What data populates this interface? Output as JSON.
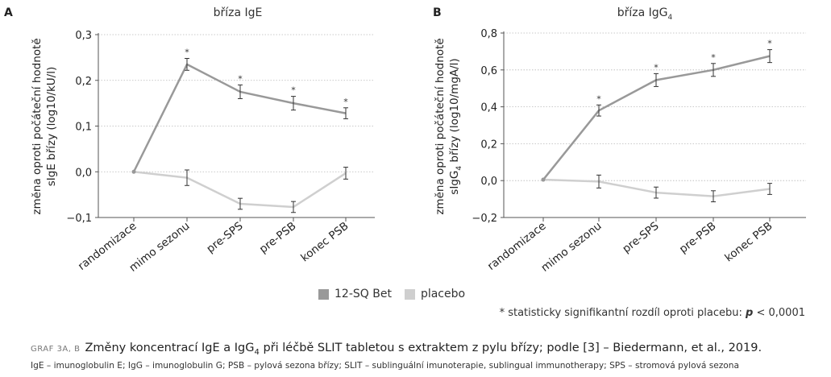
{
  "chart_data": [
    {
      "type": "line",
      "panel": "A",
      "title": "bříza IgE",
      "ylabel": [
        "změna oproti počáteční hodnotě",
        "sIgE břízy (log10/kU/l)"
      ],
      "categories": [
        "randomizace",
        "mimo sezonu",
        "pre-SPS",
        "pre-PSB",
        "konec PSB"
      ],
      "ylim": [
        -0.1,
        0.3
      ],
      "yticks": [
        -0.1,
        0.0,
        0.1,
        0.2,
        0.3
      ],
      "ytick_labels": [
        "−0,1",
        "0,0",
        "0,1",
        "0,2",
        "0,3"
      ],
      "grid": "horizontal dotted",
      "series": [
        {
          "name": "12-SQ Bet",
          "color": "#999999",
          "values": [
            0.0,
            0.235,
            0.175,
            0.15,
            0.128
          ],
          "errors": [
            0,
            0.013,
            0.015,
            0.015,
            0.012
          ],
          "significant": [
            false,
            true,
            true,
            true,
            true
          ]
        },
        {
          "name": "placebo",
          "color": "#cfcfcf",
          "values": [
            0.0,
            -0.013,
            -0.07,
            -0.077,
            -0.003
          ],
          "errors": [
            0,
            0.017,
            0.012,
            0.012,
            0.013
          ],
          "significant": [
            false,
            false,
            false,
            false,
            false
          ]
        }
      ]
    },
    {
      "type": "line",
      "panel": "B",
      "title": "bříza IgG",
      "title_sub": "4",
      "ylabel": [
        "změna oproti počáteční hodnotě",
        "sIgG",
        "4",
        " břízy (log10/mgA/l)"
      ],
      "categories": [
        "randomizace",
        "mimo sezonu",
        "pre-SPS",
        "pre-PSB",
        "konec PSB"
      ],
      "ylim": [
        -0.2,
        0.8
      ],
      "yticks": [
        -0.2,
        0.0,
        0.2,
        0.4,
        0.6,
        0.8
      ],
      "ytick_labels": [
        "−0,2",
        "0,0",
        "0,2",
        "0,4",
        "0,6",
        "0,8"
      ],
      "grid": "horizontal dotted",
      "series": [
        {
          "name": "12-SQ Bet",
          "color": "#999999",
          "values": [
            0.005,
            0.38,
            0.545,
            0.6,
            0.675
          ],
          "errors": [
            0,
            0.03,
            0.035,
            0.035,
            0.035
          ],
          "significant": [
            false,
            true,
            true,
            true,
            true
          ]
        },
        {
          "name": "placebo",
          "color": "#cfcfcf",
          "values": [
            0.005,
            -0.005,
            -0.065,
            -0.085,
            -0.045
          ],
          "errors": [
            0,
            0.035,
            0.03,
            0.03,
            0.03
          ],
          "significant": [
            false,
            false,
            false,
            false,
            false
          ]
        }
      ]
    }
  ],
  "significance_marker": "*",
  "legend": [
    {
      "label": "12-SQ Bet",
      "color": "#999999"
    },
    {
      "label": "placebo",
      "color": "#cfcfcf"
    }
  ],
  "footnote": {
    "prefix": "* statisticky signifikantní rozdíl oproti placebu: ",
    "p": "p",
    "suffix": " < 0,0001"
  },
  "caption": {
    "label": "GRAF 3A, B",
    "text_pre": "Změny koncentrací IgE a IgG",
    "text_sub": "4",
    "text_post": " při léčbě SLIT tabletou s extraktem z pylu břízy; podle [3] – Biedermann, et al., 2019."
  },
  "abbreviations": "IgE – imunoglobulin E; IgG – imunoglobulin G; PSB – pylová sezona břízy; SLIT – sublinguální imunoterapie, sublingual immunotherapy; SPS – stromová pylová sezona"
}
